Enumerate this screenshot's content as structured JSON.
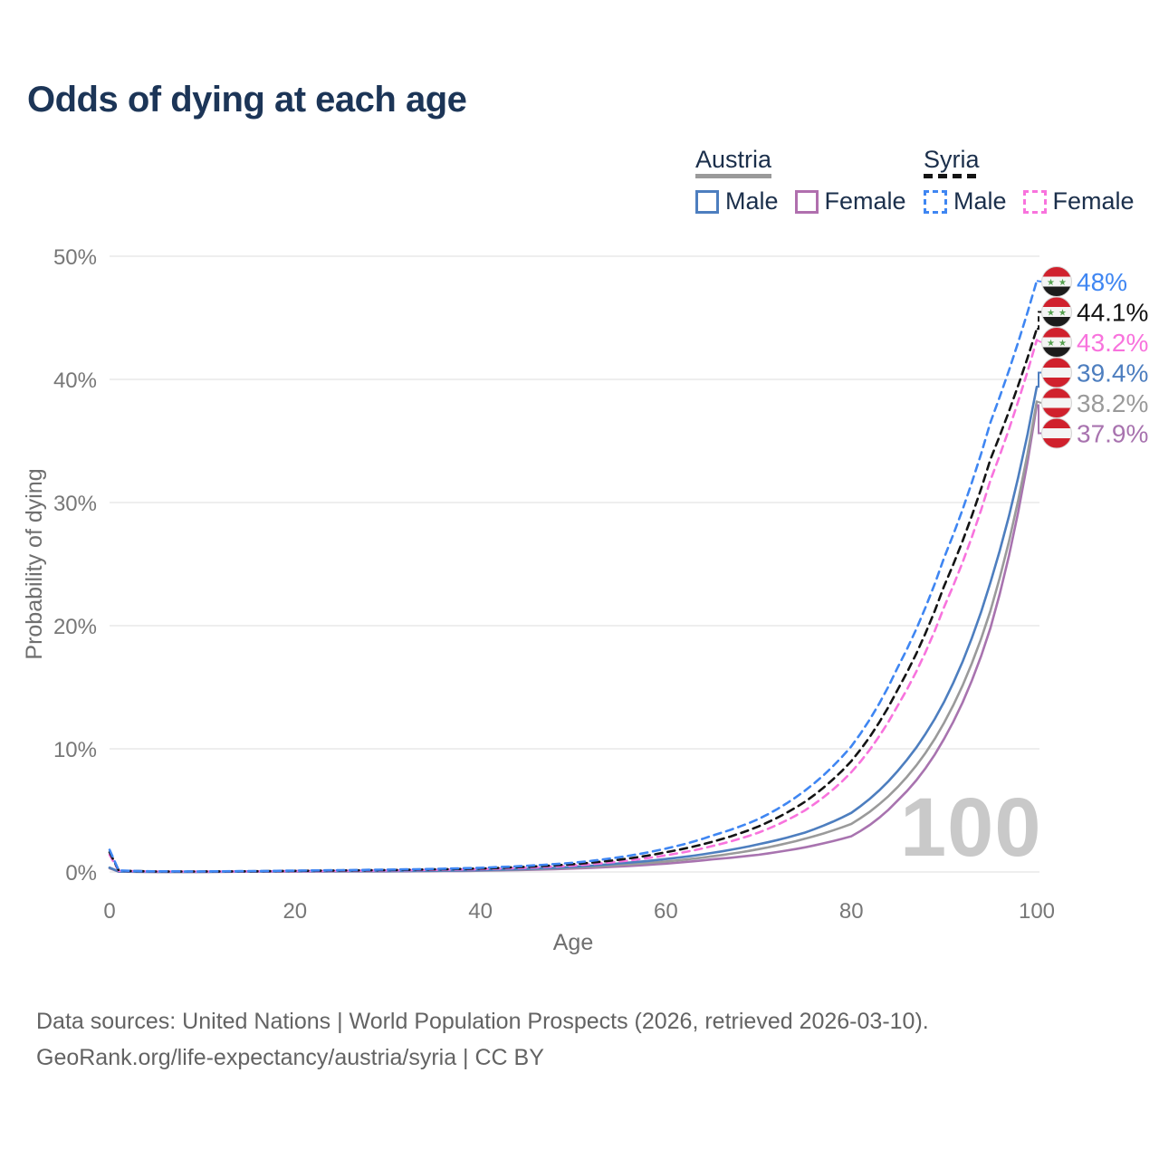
{
  "title": "Odds of dying at each age",
  "colors": {
    "title_text": "#1c3557",
    "legend_text": "#1b2f4b",
    "axis_text": "#777777",
    "grid": "#e8e8e8",
    "watermark": "#c9c9c9",
    "footer_text": "#636363"
  },
  "legend": {
    "groups": [
      {
        "label": "Austria",
        "line_style": "solid",
        "swatch_color": "#9a9a9a",
        "items": [
          {
            "label": "Male",
            "color": "#4d7ebf"
          },
          {
            "label": "Female",
            "color": "#b06fae"
          }
        ]
      },
      {
        "label": "Syria",
        "line_style": "dashed",
        "swatch_color": "#141414",
        "items": [
          {
            "label": "Male",
            "color": "#3f86f2"
          },
          {
            "label": "Female",
            "color": "#f873dd"
          }
        ]
      }
    ]
  },
  "flags": {
    "SY": {
      "name": "syria-flag",
      "bands": [
        "#d0212d",
        "#f4f4f4",
        "#1b1b1b"
      ],
      "stars": 2,
      "star_color": "#55a04f"
    },
    "AT": {
      "name": "austria-flag",
      "bands": [
        "#d0212d",
        "#f4f4f4",
        "#d0212d"
      ],
      "stars": 0,
      "star_color": ""
    }
  },
  "chart_data": {
    "type": "line",
    "title": "Odds of dying at each age",
    "xlabel": "Age",
    "ylabel": "Probability of dying",
    "xlim": [
      0,
      100
    ],
    "ylim": [
      0,
      50
    ],
    "xticks": [
      0,
      20,
      40,
      60,
      80,
      100
    ],
    "yticks": [
      {
        "value": 0,
        "label": "0%"
      },
      {
        "value": 10,
        "label": "10%"
      },
      {
        "value": 20,
        "label": "20%"
      },
      {
        "value": 30,
        "label": "30%"
      },
      {
        "value": 40,
        "label": "40%"
      },
      {
        "value": 50,
        "label": "50%"
      }
    ],
    "grid": "horizontal",
    "legend_position": "top-right",
    "watermark": "100",
    "x": [
      0,
      1,
      5,
      10,
      15,
      20,
      25,
      30,
      35,
      40,
      45,
      50,
      55,
      60,
      65,
      70,
      75,
      80,
      85,
      90,
      95,
      100
    ],
    "series": [
      {
        "name": "Syria Male",
        "country": "Syria",
        "sex": "Male",
        "flag": "SY",
        "color": "#3f86f2",
        "dashed": true,
        "end_label": "48%",
        "end_value": 48,
        "values": [
          1.8,
          0.12,
          0.05,
          0.045,
          0.07,
          0.11,
          0.15,
          0.19,
          0.25,
          0.34,
          0.5,
          0.75,
          1.2,
          1.9,
          2.95,
          4.3,
          6.6,
          10.2,
          16.6,
          25.5,
          36.5,
          48
        ]
      },
      {
        "name": "Syria Both sexes",
        "country": "Syria",
        "sex": "Both sexes",
        "flag": "SY",
        "color": "#141414",
        "dashed": true,
        "end_label": "44.1%",
        "end_value": 44.1,
        "values": [
          1.6,
          0.1,
          0.04,
          0.038,
          0.055,
          0.09,
          0.12,
          0.155,
          0.21,
          0.28,
          0.42,
          0.63,
          1.0,
          1.6,
          2.45,
          3.7,
          5.7,
          9.0,
          14.8,
          23.2,
          33.5,
          44.1
        ]
      },
      {
        "name": "Syria Female",
        "country": "Syria",
        "sex": "Female",
        "flag": "SY",
        "color": "#f873dd",
        "dashed": true,
        "end_label": "43.2%",
        "end_value": 43.2,
        "values": [
          1.4,
          0.09,
          0.035,
          0.032,
          0.045,
          0.07,
          0.095,
          0.125,
          0.17,
          0.23,
          0.34,
          0.52,
          0.85,
          1.35,
          2.1,
          3.2,
          5.0,
          8.1,
          13.5,
          21.5,
          31.8,
          43.2
        ]
      },
      {
        "name": "Austria Male",
        "country": "Austria",
        "sex": "Male",
        "flag": "AT",
        "color": "#4d7ebf",
        "dashed": false,
        "end_label": "39.4%",
        "end_value": 39.4,
        "values": [
          0.35,
          0.03,
          0.012,
          0.012,
          0.035,
          0.065,
          0.07,
          0.08,
          0.1,
          0.15,
          0.25,
          0.42,
          0.7,
          1.05,
          1.55,
          2.25,
          3.2,
          4.8,
          8.2,
          13.8,
          23.5,
          39.4
        ]
      },
      {
        "name": "Austria Both sexes",
        "country": "Austria",
        "sex": "Both sexes",
        "flag": "AT",
        "color": "#9a9a9a",
        "dashed": false,
        "end_label": "38.2%",
        "end_value": 38.2,
        "values": [
          0.33,
          0.027,
          0.011,
          0.011,
          0.03,
          0.05,
          0.055,
          0.065,
          0.085,
          0.13,
          0.21,
          0.35,
          0.57,
          0.85,
          1.27,
          1.85,
          2.7,
          3.9,
          6.9,
          12.1,
          21.2,
          38.2
        ]
      },
      {
        "name": "Austria Female",
        "country": "Austria",
        "sex": "Female",
        "flag": "AT",
        "color": "#a873af",
        "dashed": false,
        "end_label": "37.9%",
        "end_value": 37.9,
        "values": [
          0.3,
          0.025,
          0.01,
          0.01,
          0.022,
          0.03,
          0.035,
          0.045,
          0.065,
          0.1,
          0.17,
          0.28,
          0.45,
          0.68,
          1.02,
          1.4,
          2.0,
          2.9,
          5.8,
          10.8,
          19.8,
          37.9
        ]
      }
    ]
  },
  "footer": {
    "line1": "Data sources: United Nations | World Population Prospects (2026, retrieved 2026-03-10).",
    "line2": "GeoRank.org/life-expectancy/austria/syria | CC BY"
  }
}
